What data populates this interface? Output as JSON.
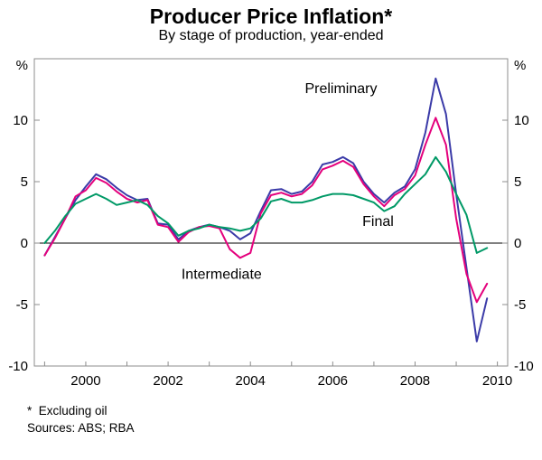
{
  "title": "Producer Price Inflation*",
  "subtitle": "By stage of production, year-ended",
  "footnotes": [
    "*  Excluding oil",
    "Sources: ABS; RBA"
  ],
  "chart_data": {
    "type": "line",
    "title": "Producer Price Inflation*",
    "subtitle": "By stage of production, year-ended",
    "ylabel_left": "%",
    "ylabel_right": "%",
    "xlim": [
      1998.75,
      2010.25
    ],
    "ylim": [
      -10,
      15
    ],
    "yticks": [
      -10,
      -5,
      0,
      5,
      10
    ],
    "xticks": [
      2000,
      2002,
      2004,
      2006,
      2008,
      2010
    ],
    "grid": false,
    "zero_line": true,
    "x": [
      1999.0,
      1999.25,
      1999.5,
      1999.75,
      2000.0,
      2000.25,
      2000.5,
      2000.75,
      2001.0,
      2001.25,
      2001.5,
      2001.75,
      2002.0,
      2002.25,
      2002.5,
      2002.75,
      2003.0,
      2003.25,
      2003.5,
      2003.75,
      2004.0,
      2004.25,
      2004.5,
      2004.75,
      2005.0,
      2005.25,
      2005.5,
      2005.75,
      2006.0,
      2006.25,
      2006.5,
      2006.75,
      2007.0,
      2007.25,
      2007.5,
      2007.75,
      2008.0,
      2008.25,
      2008.5,
      2008.75,
      2009.0,
      2009.25,
      2009.5,
      2009.75
    ],
    "series": [
      {
        "name": "Preliminary",
        "color": "#3b3bа8",
        "values": [
          -1.0,
          0.5,
          2.0,
          3.5,
          4.6,
          5.6,
          5.2,
          4.5,
          3.9,
          3.5,
          3.6,
          1.6,
          1.5,
          0.3,
          1.0,
          1.3,
          1.5,
          1.3,
          1.0,
          0.3,
          0.8,
          2.6,
          4.3,
          4.4,
          4.0,
          4.2,
          5.0,
          6.4,
          6.6,
          7.0,
          6.5,
          5.0,
          4.0,
          3.3,
          4.1,
          4.6,
          6.0,
          9.0,
          13.4,
          10.5,
          4.0,
          -2.0,
          -8.0,
          -4.5
        ],
        "label_pos": {
          "x": 2006.2,
          "y": 12.2
        }
      },
      {
        "name": "Intermediate",
        "color": "#e4007c",
        "values": [
          -1.0,
          0.4,
          2.0,
          3.8,
          4.3,
          5.3,
          4.9,
          4.2,
          3.6,
          3.3,
          3.5,
          1.5,
          1.3,
          0.1,
          0.9,
          1.3,
          1.4,
          1.2,
          -0.5,
          -1.2,
          -0.8,
          2.4,
          3.9,
          4.1,
          3.8,
          4.0,
          4.7,
          6.0,
          6.3,
          6.7,
          6.2,
          4.8,
          3.8,
          3.0,
          3.9,
          4.4,
          5.5,
          8.0,
          10.2,
          8.0,
          2.0,
          -2.5,
          -4.8,
          -3.3
        ],
        "label_pos": {
          "x": 2003.3,
          "y": -2.9
        }
      },
      {
        "name": "Final",
        "color": "#009966",
        "values": [
          0.0,
          1.0,
          2.2,
          3.2,
          3.6,
          4.0,
          3.6,
          3.1,
          3.3,
          3.5,
          3.1,
          2.2,
          1.6,
          0.6,
          1.0,
          1.2,
          1.5,
          1.3,
          1.2,
          1.0,
          1.2,
          2.0,
          3.4,
          3.6,
          3.3,
          3.3,
          3.5,
          3.8,
          4.0,
          4.0,
          3.9,
          3.6,
          3.3,
          2.6,
          3.0,
          4.0,
          4.8,
          5.6,
          7.0,
          5.8,
          4.0,
          2.3,
          -0.8,
          -0.4
        ],
        "label_pos": {
          "x": 2007.1,
          "y": 1.4
        }
      }
    ],
    "colors": {
      "preliminary": "#3b3ba8",
      "intermediate": "#e4007c",
      "final": "#009966"
    }
  }
}
